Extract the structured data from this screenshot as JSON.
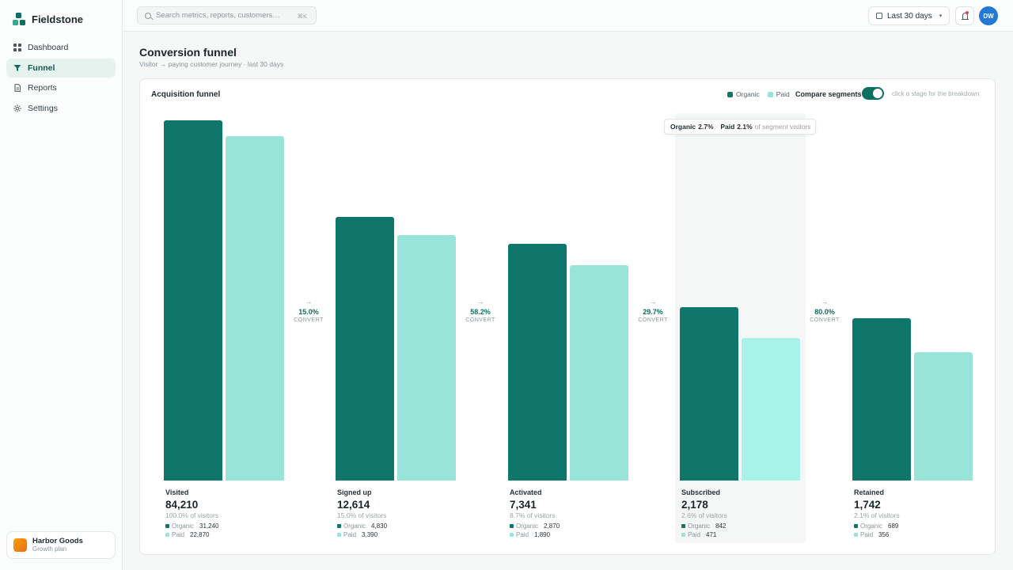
{
  "app": {
    "name": "Fieldstone"
  },
  "sidebar": {
    "items": [
      {
        "label": "Dashboard",
        "icon": "grid-icon"
      },
      {
        "label": "Funnel",
        "icon": "filter-icon",
        "active": true
      },
      {
        "label": "Reports",
        "icon": "document-icon"
      },
      {
        "label": "Settings",
        "icon": "gear-icon"
      }
    ],
    "workspace": {
      "name": "Harbor Goods",
      "plan": "Growth plan"
    }
  },
  "topbar": {
    "search_placeholder": "Search metrics, reports, customers…",
    "search_shortcut": "⌘K",
    "date_range": "Last 30 days",
    "avatar_initials": "DW"
  },
  "header": {
    "title": "Conversion funnel",
    "subtitle": "Visitor → paying customer journey · last 30 days"
  },
  "card": {
    "title": "Acquisition funnel",
    "legend": [
      "Organic",
      "Paid"
    ],
    "compare_label": "Compare segments",
    "compare_on": true,
    "hint": "click a stage for the breakdown"
  },
  "tooltip": {
    "organic_label": "Organic",
    "organic_value": "2.7%",
    "paid_label": "Paid",
    "paid_value": "2.1%",
    "suffix": "of segment visitors"
  },
  "colors": {
    "organic": "#0f766b",
    "paid": "#99e4d9",
    "paid_highlight": "#a7f3e9",
    "accent": "#0f6e62"
  },
  "chart_data": {
    "type": "bar",
    "categories": [
      "Visited",
      "Signed up",
      "Activated",
      "Subscribed",
      "Retained"
    ],
    "series": [
      {
        "name": "Organic",
        "values": [
          31240,
          4830,
          2870,
          842,
          689
        ]
      },
      {
        "name": "Paid",
        "values": [
          22870,
          3390,
          1890,
          471,
          356
        ]
      }
    ],
    "totals": [
      "84,210",
      "12,614",
      "7,341",
      "2,178",
      "1,742"
    ],
    "pct_of_visitors": [
      "100.0% of visitors",
      "15.0% of visitors",
      "8.7% of visitors",
      "2.6% of visitors",
      "2.1% of visitors"
    ],
    "organic_display": [
      "31,240",
      "4,830",
      "2,870",
      "842",
      "689"
    ],
    "paid_display": [
      "22,870",
      "3,390",
      "1,890",
      "471",
      "356"
    ],
    "conversions": [
      "15.0%",
      "58.2%",
      "29.7%",
      "80.0%"
    ],
    "conversion_label": "CONVERT",
    "highlighted_stage": "Subscribed",
    "scale": "log"
  }
}
